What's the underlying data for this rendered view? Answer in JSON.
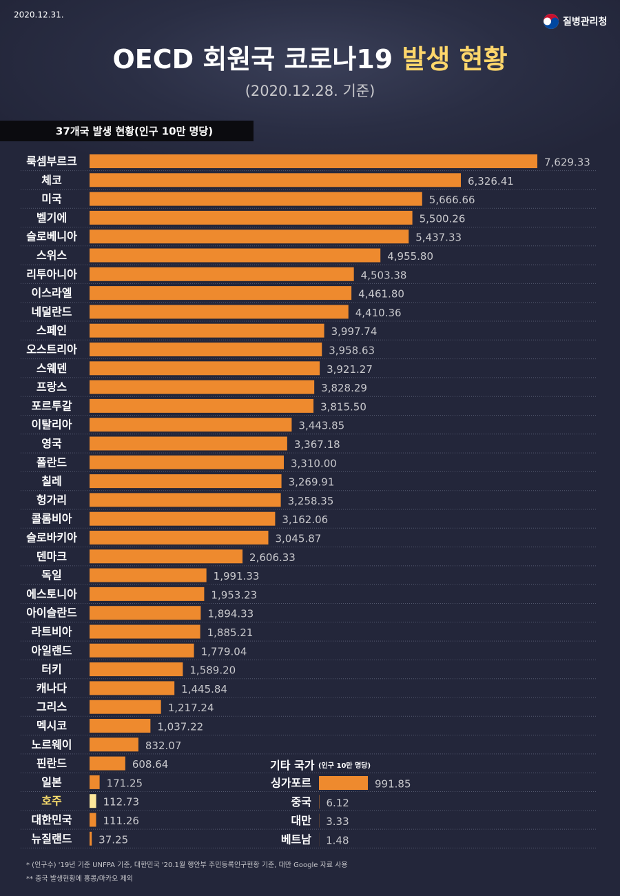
{
  "date": "2020.12.31.",
  "logo": "질병관리청",
  "title_main": "OECD 회원국 코로나19",
  "title_highlight": "발생 현황",
  "subtitle": "(2020.12.28. 기준)",
  "chart_data": [
    {
      "type": "bar",
      "orientation": "horizontal",
      "title": "37개국 발생 현황(인구 10만 명당)",
      "color": "#ee8a2e",
      "highlight": {
        "index": 34,
        "color": "#fde79a",
        "label_color": "#fde06d"
      },
      "categories": [
        "룩셈부르크",
        "체코",
        "미국",
        "벨기에",
        "슬로베니아",
        "스위스",
        "리투아니아",
        "이스라엘",
        "네덜란드",
        "스페인",
        "오스트리아",
        "스웨덴",
        "프랑스",
        "포르투갈",
        "이탈리아",
        "영국",
        "폴란드",
        "칠레",
        "헝가리",
        "콜롬비아",
        "슬로바키아",
        "덴마크",
        "독일",
        "에스토니아",
        "아이슬란드",
        "라트비아",
        "아일랜드",
        "터키",
        "캐나다",
        "그리스",
        "멕시코",
        "노르웨이",
        "핀란드",
        "일본",
        "호주",
        "대한민국",
        "뉴질랜드"
      ],
      "values": [
        7629.33,
        6326.41,
        5666.66,
        5500.26,
        5437.33,
        4955.8,
        4503.38,
        4461.8,
        4410.36,
        3997.74,
        3958.63,
        3921.27,
        3828.29,
        3815.5,
        3443.85,
        3367.18,
        3310.0,
        3269.91,
        3258.35,
        3162.06,
        3045.87,
        2606.33,
        1991.33,
        1953.23,
        1894.33,
        1885.21,
        1779.04,
        1589.2,
        1445.84,
        1217.24,
        1037.22,
        832.07,
        608.64,
        171.25,
        112.73,
        111.26,
        37.25
      ],
      "value_labels": [
        "7,629.33",
        "6,326.41",
        "5,666.66",
        "5,500.26",
        "5,437.33",
        "4,955.80",
        "4,503.38",
        "4,461.80",
        "4,410.36",
        "3,997.74",
        "3,958.63",
        "3,921.27",
        "3,828.29",
        "3,815.50",
        "3,443.85",
        "3,367.18",
        "3,310.00",
        "3,269.91",
        "3,258.35",
        "3,162.06",
        "3,045.87",
        "2,606.33",
        "1,991.33",
        "1,953.23",
        "1,894.33",
        "1,885.21",
        "1,779.04",
        "1,589.20",
        "1,445.84",
        "1,217.24",
        "1,037.22",
        "832.07",
        "608.64",
        "171.25",
        "112.73",
        "111.26",
        "37.25"
      ]
    },
    {
      "type": "bar",
      "orientation": "horizontal",
      "title": "기타 국가",
      "subtitle": "(인구 10만 명당)",
      "color": "#ee8a2e",
      "categories": [
        "싱가포르",
        "중국",
        "대만",
        "베트남"
      ],
      "values": [
        991.85,
        6.12,
        3.33,
        1.48
      ]
    }
  ],
  "footnotes": [
    "* (인구수) '19년 기준 UNFPA 기준, 대한민국 '20.1월 행안부 주민등록인구현황 기준, 대만 Google 자료 사용",
    "** 중국 발생현황에 홍콩/마카오 제외"
  ]
}
